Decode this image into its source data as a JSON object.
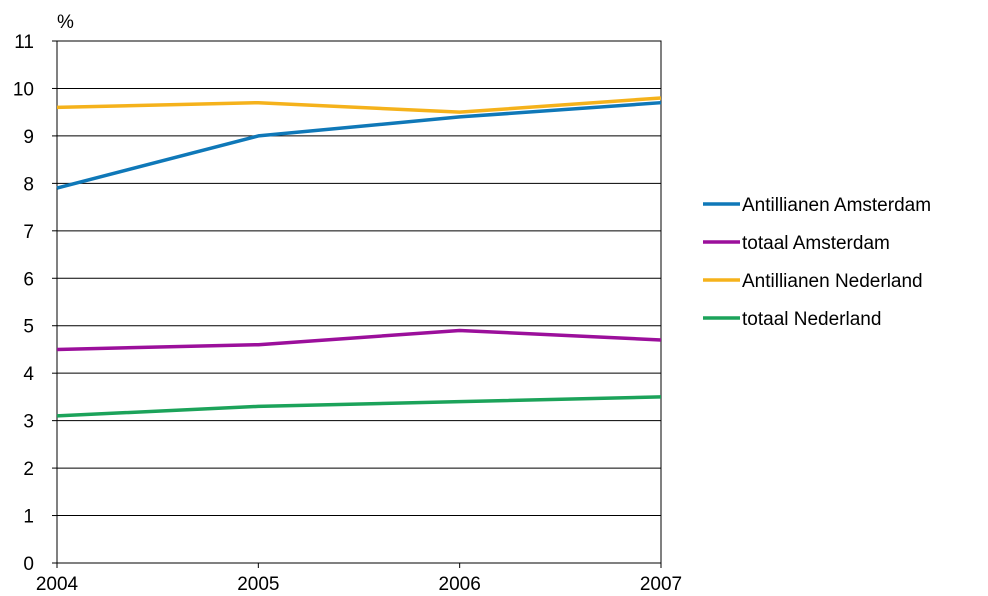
{
  "chart_data": {
    "type": "line",
    "title": "",
    "xlabel": "",
    "ylabel": "%",
    "categories": [
      "2004",
      "2005",
      "2006",
      "2007"
    ],
    "ylim": [
      0,
      11
    ],
    "y_ticks": [
      "0",
      "1",
      "2",
      "3",
      "4",
      "5",
      "6",
      "7",
      "8",
      "9",
      "10",
      "11"
    ],
    "grid": true,
    "legend_position": "right",
    "series": [
      {
        "name": "Antillianen Amsterdam",
        "color": "#0f78b8",
        "values": [
          7.9,
          9.0,
          9.4,
          9.7
        ]
      },
      {
        "name": "totaal Amsterdam",
        "color": "#9b0f9b",
        "values": [
          4.5,
          4.6,
          4.9,
          4.7
        ]
      },
      {
        "name": "Antillianen Nederland",
        "color": "#f5b21b",
        "values": [
          9.6,
          9.7,
          9.5,
          9.8
        ]
      },
      {
        "name": "totaal Nederland",
        "color": "#1ca35a",
        "values": [
          3.1,
          3.3,
          3.4,
          3.5
        ]
      }
    ]
  }
}
